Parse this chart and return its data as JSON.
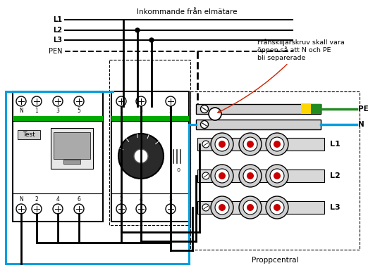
{
  "bg_color": "#ffffff",
  "fig_width": 5.22,
  "fig_height": 3.91,
  "dpi": 100,
  "text_incoming": "Inkommande från elmätare",
  "text_annotation": "Frånskiljarskruv skall vara\nöppen så att N och PE\nbli separerade",
  "text_proppcentral": "Proppcentral",
  "color_black": "#000000",
  "color_blue": "#009fdf",
  "color_green_wire": "#228B22",
  "color_yellow": "#FFD700",
  "color_red": "#cc0000",
  "color_green_bright": "#00aa00",
  "color_orange_red": "#cc2200",
  "color_gray_device": "#e8e8e8",
  "color_gray_bar": "#d0d0d0",
  "color_gray_fuse": "#d8d8d8"
}
